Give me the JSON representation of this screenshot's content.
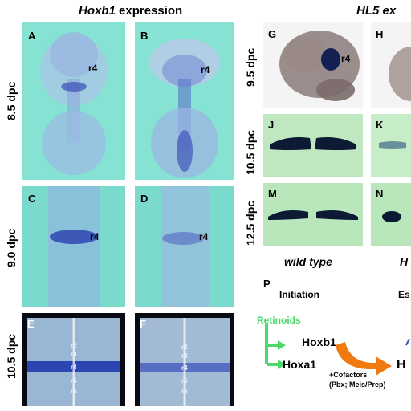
{
  "left_heading": {
    "gene": "Hoxb1",
    "rest": " expression"
  },
  "right_heading": {
    "gene": "HL5 ex",
    "rest": ""
  },
  "stages_left": [
    "8.5 dpc",
    "9.0 dpc",
    "10.5 dpc"
  ],
  "stages_right": [
    "9.5 dpc",
    "10.5 dpc",
    "12.5 dpc"
  ],
  "panel_letters": [
    "A",
    "B",
    "C",
    "D",
    "E",
    "F",
    "G",
    "H",
    "J",
    "K",
    "M",
    "N",
    "P"
  ],
  "r4_label": "r4",
  "rhombomere_labels_E": [
    "r2",
    "r3",
    "r4",
    "r5",
    "r6"
  ],
  "rhombomere_labels_F": [
    "r2",
    "r3",
    "r4",
    "r5",
    "r6"
  ],
  "wild_type_label": "wild type",
  "right_cut_label": "H",
  "diagram": {
    "initiation": "Initiation",
    "establishment_cut": "Es",
    "retinoids": "Retinoids",
    "hoxb1": "Hoxb1",
    "hoxa1": "Hoxa1",
    "cofactors_line1": "+Cofactors",
    "cofactors_line2": "(Pbx; Meis/Prep)",
    "target_cut": "H"
  },
  "colors": {
    "panel_bg": "#7fe0cf",
    "stain": "#3b4fb5",
    "retinoid_green": "#4cd96a",
    "arrow_orange": "#f07a10"
  }
}
